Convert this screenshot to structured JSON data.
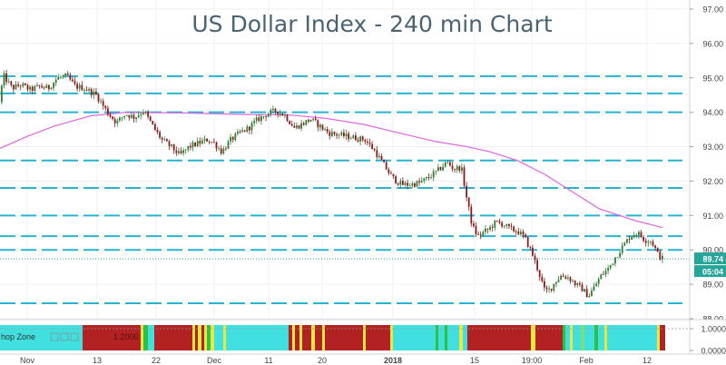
{
  "chart_data": {
    "type": "candlestick",
    "title": "US Dollar Index - 240 min Chart",
    "instrument": "US Dollar Index",
    "timeframe": "240 min",
    "y_axis": {
      "position": "right",
      "ylim": [
        87.65,
        97.3
      ],
      "ticks": [
        "97.00",
        "96.00",
        "95.00",
        "94.00",
        "93.00",
        "92.00",
        "91.00",
        "90.00",
        "89.00",
        "88.00"
      ]
    },
    "x_axis": {
      "ticks": [
        "Nov",
        "13",
        "22",
        "Dec",
        "11",
        "20",
        "2018",
        "15",
        "19:00",
        "Feb",
        "12"
      ]
    },
    "current_price": {
      "value": "89.74",
      "countdown": "05:04",
      "color": "#26a69a"
    },
    "horizontal_levels": [
      95.05,
      94.55,
      94.0,
      92.6,
      91.8,
      91.0,
      90.4,
      90.0,
      88.45
    ],
    "series": [
      {
        "kind": "candles",
        "up_color": "#2e7d32",
        "down_color": "#8b1a1a",
        "anchors": [
          [
            0,
            94.3
          ],
          [
            6,
            95.05
          ],
          [
            15,
            94.7
          ],
          [
            25,
            94.8
          ],
          [
            35,
            94.65
          ],
          [
            45,
            94.75
          ],
          [
            55,
            94.7
          ],
          [
            65,
            95.0
          ],
          [
            75,
            95.05
          ],
          [
            85,
            94.75
          ],
          [
            95,
            94.7
          ],
          [
            108,
            94.5
          ],
          [
            120,
            94.0
          ],
          [
            130,
            93.7
          ],
          [
            140,
            93.95
          ],
          [
            150,
            93.85
          ],
          [
            160,
            94.05
          ],
          [
            170,
            93.6
          ],
          [
            180,
            93.2
          ],
          [
            190,
            93.0
          ],
          [
            200,
            92.75
          ],
          [
            210,
            93.0
          ],
          [
            220,
            93.1
          ],
          [
            230,
            93.2
          ],
          [
            238,
            93.1
          ],
          [
            246,
            92.85
          ],
          [
            256,
            93.2
          ],
          [
            266,
            93.4
          ],
          [
            276,
            93.55
          ],
          [
            286,
            93.8
          ],
          [
            296,
            93.95
          ],
          [
            306,
            94.05
          ],
          [
            316,
            93.9
          ],
          [
            326,
            93.55
          ],
          [
            334,
            93.65
          ],
          [
            344,
            93.8
          ],
          [
            354,
            93.6
          ],
          [
            364,
            93.4
          ],
          [
            374,
            93.35
          ],
          [
            384,
            93.3
          ],
          [
            394,
            93.25
          ],
          [
            404,
            93.2
          ],
          [
            414,
            92.9
          ],
          [
            424,
            92.5
          ],
          [
            434,
            92.1
          ],
          [
            444,
            91.9
          ],
          [
            454,
            91.9
          ],
          [
            464,
            91.95
          ],
          [
            474,
            92.1
          ],
          [
            484,
            92.3
          ],
          [
            494,
            92.55
          ],
          [
            502,
            92.35
          ],
          [
            510,
            92.4
          ],
          [
            516,
            91.5
          ],
          [
            522,
            90.7
          ],
          [
            528,
            90.4
          ],
          [
            534,
            90.5
          ],
          [
            540,
            90.6
          ],
          [
            548,
            90.8
          ],
          [
            556,
            90.75
          ],
          [
            564,
            90.6
          ],
          [
            572,
            90.55
          ],
          [
            580,
            90.35
          ],
          [
            588,
            89.9
          ],
          [
            596,
            89.3
          ],
          [
            602,
            88.8
          ],
          [
            608,
            88.85
          ],
          [
            614,
            89.1
          ],
          [
            620,
            89.25
          ],
          [
            628,
            89.2
          ],
          [
            636,
            89.0
          ],
          [
            644,
            88.85
          ],
          [
            650,
            88.65
          ],
          [
            656,
            88.9
          ],
          [
            664,
            89.25
          ],
          [
            672,
            89.45
          ],
          [
            680,
            89.8
          ],
          [
            688,
            90.1
          ],
          [
            696,
            90.4
          ],
          [
            704,
            90.5
          ],
          [
            712,
            90.3
          ],
          [
            720,
            90.25
          ],
          [
            726,
            89.9
          ],
          [
            731,
            89.74
          ]
        ]
      },
      {
        "kind": "moving_average",
        "color": "#e066e0",
        "anchors": [
          [
            0,
            92.95
          ],
          [
            30,
            93.3
          ],
          [
            60,
            93.6
          ],
          [
            100,
            93.9
          ],
          [
            140,
            94.0
          ],
          [
            200,
            93.98
          ],
          [
            260,
            93.94
          ],
          [
            320,
            93.92
          ],
          [
            360,
            93.82
          ],
          [
            400,
            93.65
          ],
          [
            440,
            93.4
          ],
          [
            480,
            93.15
          ],
          [
            515,
            93.0
          ],
          [
            540,
            92.85
          ],
          [
            570,
            92.6
          ],
          [
            600,
            92.2
          ],
          [
            630,
            91.7
          ],
          [
            660,
            91.2
          ],
          [
            700,
            90.85
          ],
          [
            730,
            90.65
          ]
        ]
      }
    ],
    "indicator": {
      "label": "hop Zone",
      "value_label": "1.2000",
      "y_ticks": [
        "1.0000",
        "0.0000"
      ],
      "colors": {
        "red": "#b22222",
        "cyan": "#40e0e0",
        "yellow": "#e8e840",
        "green": "#2ec040",
        "lightgreen": "#7ae07a"
      },
      "segments": [
        {
          "from": 0,
          "to": 91,
          "color": "cyan"
        },
        {
          "from": 91,
          "to": 155,
          "color": "red"
        },
        {
          "from": 155,
          "to": 158,
          "color": "yellow"
        },
        {
          "from": 158,
          "to": 163,
          "color": "green"
        },
        {
          "from": 163,
          "to": 170,
          "color": "cyan"
        },
        {
          "from": 170,
          "to": 212,
          "color": "red"
        },
        {
          "from": 212,
          "to": 215,
          "color": "yellow"
        },
        {
          "from": 215,
          "to": 218,
          "color": "red"
        },
        {
          "from": 218,
          "to": 222,
          "color": "yellow"
        },
        {
          "from": 222,
          "to": 225,
          "color": "red"
        },
        {
          "from": 225,
          "to": 228,
          "color": "yellow"
        },
        {
          "from": 228,
          "to": 232,
          "color": "green"
        },
        {
          "from": 232,
          "to": 236,
          "color": "yellow"
        },
        {
          "from": 236,
          "to": 246,
          "color": "cyan"
        },
        {
          "from": 246,
          "to": 249,
          "color": "yellow"
        },
        {
          "from": 249,
          "to": 318,
          "color": "cyan"
        },
        {
          "from": 318,
          "to": 322,
          "color": "red"
        },
        {
          "from": 322,
          "to": 325,
          "color": "yellow"
        },
        {
          "from": 325,
          "to": 330,
          "color": "red"
        },
        {
          "from": 330,
          "to": 333,
          "color": "yellow"
        },
        {
          "from": 333,
          "to": 343,
          "color": "red"
        },
        {
          "from": 343,
          "to": 347,
          "color": "yellow"
        },
        {
          "from": 347,
          "to": 355,
          "color": "red"
        },
        {
          "from": 355,
          "to": 358,
          "color": "yellow"
        },
        {
          "from": 358,
          "to": 400,
          "color": "red"
        },
        {
          "from": 400,
          "to": 403,
          "color": "yellow"
        },
        {
          "from": 403,
          "to": 430,
          "color": "red"
        },
        {
          "from": 430,
          "to": 433,
          "color": "yellow"
        },
        {
          "from": 433,
          "to": 480,
          "color": "cyan"
        },
        {
          "from": 480,
          "to": 483,
          "color": "green"
        },
        {
          "from": 483,
          "to": 490,
          "color": "cyan"
        },
        {
          "from": 490,
          "to": 493,
          "color": "green"
        },
        {
          "from": 493,
          "to": 506,
          "color": "cyan"
        },
        {
          "from": 506,
          "to": 510,
          "color": "yellow"
        },
        {
          "from": 510,
          "to": 515,
          "color": "cyan"
        },
        {
          "from": 515,
          "to": 585,
          "color": "red"
        },
        {
          "from": 585,
          "to": 590,
          "color": "yellow"
        },
        {
          "from": 590,
          "to": 620,
          "color": "red"
        },
        {
          "from": 620,
          "to": 623,
          "color": "green"
        },
        {
          "from": 623,
          "to": 628,
          "color": "cyan"
        },
        {
          "from": 628,
          "to": 631,
          "color": "yellow"
        },
        {
          "from": 631,
          "to": 640,
          "color": "cyan"
        },
        {
          "from": 640,
          "to": 644,
          "color": "lightgreen"
        },
        {
          "from": 644,
          "to": 655,
          "color": "cyan"
        },
        {
          "from": 655,
          "to": 659,
          "color": "green"
        },
        {
          "from": 659,
          "to": 666,
          "color": "cyan"
        },
        {
          "from": 666,
          "to": 669,
          "color": "yellow"
        },
        {
          "from": 669,
          "to": 724,
          "color": "cyan"
        },
        {
          "from": 724,
          "to": 727,
          "color": "yellow"
        },
        {
          "from": 727,
          "to": 733,
          "color": "red"
        }
      ]
    }
  }
}
